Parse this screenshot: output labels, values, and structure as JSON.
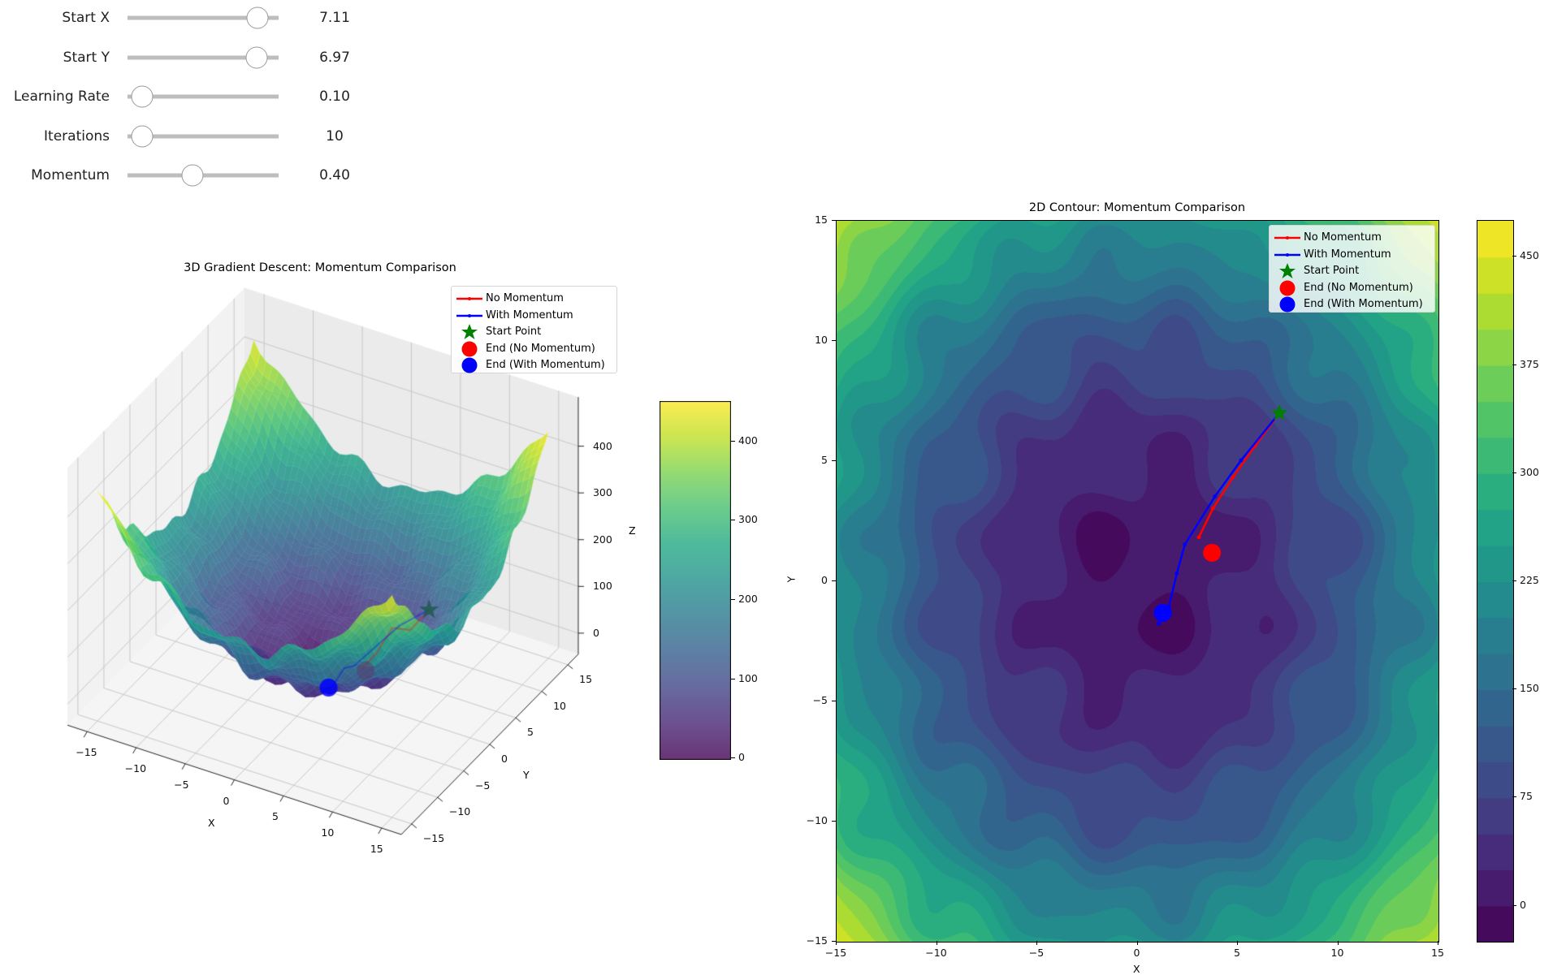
{
  "controls": {
    "sliders": [
      {
        "label": "Start X",
        "value": "7.11",
        "position": 0.92
      },
      {
        "label": "Start Y",
        "value": "6.97",
        "position": 0.91
      },
      {
        "label": "Learning Rate",
        "value": "0.10",
        "position": 0.03
      },
      {
        "label": "Iterations",
        "value": "10",
        "position": 0.03
      },
      {
        "label": "Momentum",
        "value": "0.40",
        "position": 0.42
      }
    ]
  },
  "legend": [
    {
      "label": "No Momentum",
      "color": "#ff0000",
      "marker": "line"
    },
    {
      "label": "With Momentum",
      "color": "#0000ff",
      "marker": "line"
    },
    {
      "label": "Start Point",
      "color": "#008000",
      "marker": "star"
    },
    {
      "label": "End (No Momentum)",
      "color": "#ff0000",
      "marker": "circle"
    },
    {
      "label": "End (With Momentum)",
      "color": "#0000ff",
      "marker": "circle"
    }
  ],
  "chart_data": [
    {
      "type": "surface",
      "title": "3D Gradient Descent: Momentum Comparison",
      "xlabel": "X",
      "ylabel": "Y",
      "zlabel": "Z",
      "xlim": [
        -15,
        15
      ],
      "ylim": [
        -15,
        15
      ],
      "xticks": [
        "−15",
        "−10",
        "−5",
        "0",
        "5",
        "10",
        "15"
      ],
      "yticks": [
        "−15",
        "−10",
        "−5",
        "0",
        "5",
        "10",
        "15"
      ],
      "zticks": [
        "0",
        "100",
        "200",
        "300",
        "400"
      ],
      "colormap": "viridis",
      "colorbar": {
        "ticks": [
          "0",
          "100",
          "200",
          "300",
          "400"
        ],
        "range": [
          -3,
          450
        ]
      },
      "grid": true,
      "legend_position": "top-right"
    },
    {
      "type": "contour",
      "title": "2D Contour: Momentum Comparison",
      "xlabel": "X",
      "ylabel": "Y",
      "xlim": [
        -15,
        15
      ],
      "ylim": [
        -15,
        15
      ],
      "xticks": [
        "−15",
        "−10",
        "−5",
        "0",
        "5",
        "10",
        "15"
      ],
      "yticks": [
        "−15",
        "−10",
        "−5",
        "0",
        "5",
        "10",
        "15"
      ],
      "colormap": "viridis",
      "levels": {
        "min": -25,
        "max": 475,
        "step": 25
      },
      "colorbar": {
        "ticks": [
          "0",
          "75",
          "150",
          "225",
          "300",
          "375",
          "450"
        ],
        "range": [
          -25,
          475
        ]
      },
      "legend_position": "top-right",
      "series": [
        {
          "name": "No Momentum",
          "color": "#ff0000",
          "x": [
            7.11,
            5.9,
            4.8,
            3.8,
            3.1
          ],
          "y": [
            6.97,
            5.6,
            4.3,
            3.0,
            1.8
          ]
        },
        {
          "name": "With Momentum",
          "color": "#0000ff",
          "x": [
            7.11,
            5.2,
            3.9,
            2.4,
            2.0,
            1.6,
            1.1
          ],
          "y": [
            6.97,
            5.0,
            3.5,
            1.5,
            0.3,
            -1.1,
            -1.8
          ]
        },
        {
          "name": "Start Point",
          "color": "#008000",
          "x": [
            7.11
          ],
          "y": [
            6.97
          ]
        },
        {
          "name": "End (No Momentum)",
          "color": "#ff0000",
          "x": [
            3.75
          ],
          "y": [
            1.15
          ]
        },
        {
          "name": "End (With Momentum)",
          "color": "#0000ff",
          "x": [
            1.3
          ],
          "y": [
            -1.35
          ]
        }
      ]
    }
  ]
}
